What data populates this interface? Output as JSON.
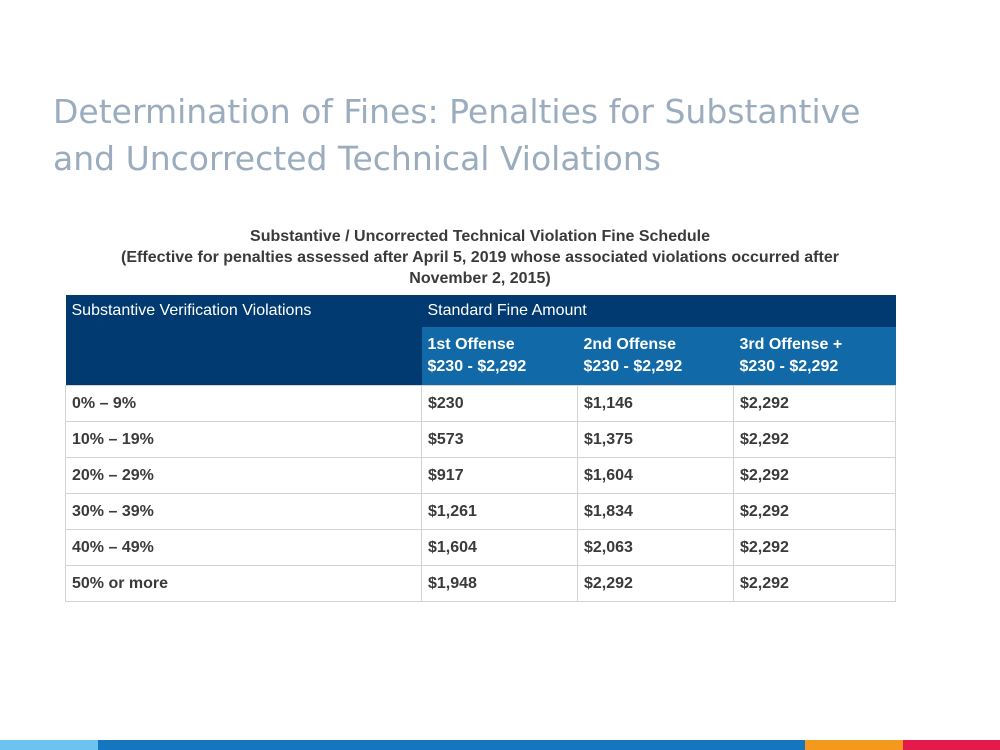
{
  "slide": {
    "title_line1": "Determination of Fines: Penalties for Substantive",
    "title_line2": "and Uncorrected Technical Violations"
  },
  "caption": {
    "line1": "Substantive / Uncorrected Technical Violation Fine Schedule",
    "line2": "(Effective for penalties assessed after April 5, 2019 whose associated violations occurred after",
    "line3": "November 2, 2015)"
  },
  "table": {
    "header": {
      "category": "Substantive Verification Violations",
      "amount": "Standard Fine Amount"
    },
    "offenses": [
      {
        "label": "1st Offense",
        "range": "$230 - $2,292"
      },
      {
        "label": "2nd Offense",
        "range": "$230 - $2,292"
      },
      {
        "label": "3rd Offense +",
        "range": "$230 - $2,292"
      }
    ],
    "rows": [
      [
        "0% – 9%",
        "$230",
        "$1,146",
        "$2,292"
      ],
      [
        "10% – 19%",
        "$573",
        "$1,375",
        "$2,292"
      ],
      [
        "20% – 29%",
        "$917",
        "$1,604",
        "$2,292"
      ],
      [
        "30% – 39%",
        "$1,261",
        "$1,834",
        "$2,292"
      ],
      [
        "40% – 49%",
        "$1,604",
        "$2,063",
        "$2,292"
      ],
      [
        "50% or more",
        "$1,948",
        "$2,292",
        "$2,292"
      ]
    ]
  },
  "colors": {
    "title": "#9aacbd",
    "header_dark": "#003a70",
    "header_sub": "#1169a8",
    "footer": [
      "#6cc3f0",
      "#1576bf",
      "#f39a1e",
      "#e5194c"
    ]
  }
}
